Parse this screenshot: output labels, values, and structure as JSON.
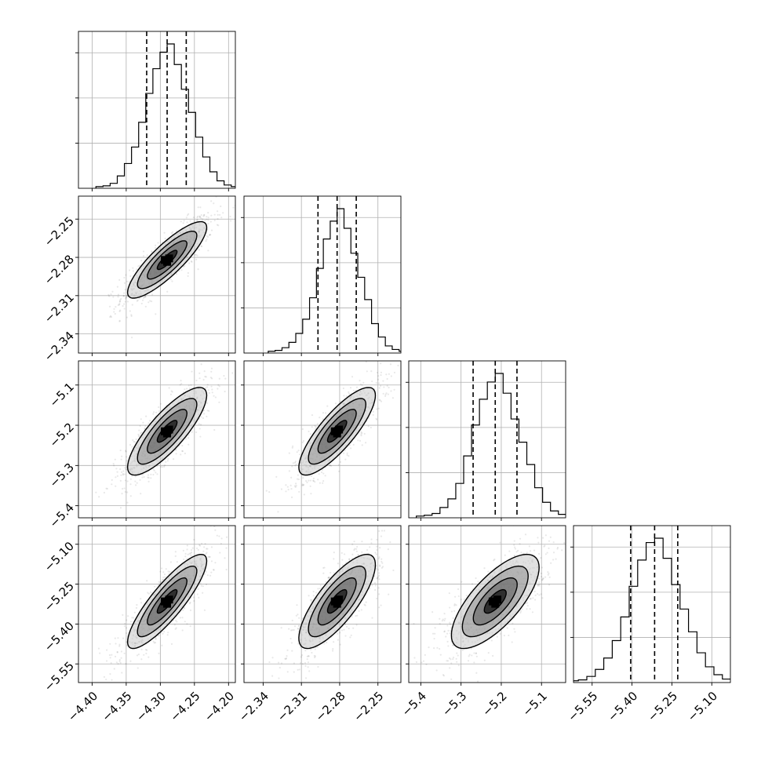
{
  "chart_data": {
    "type": "corner",
    "grid": true,
    "parameters": [
      {
        "index": 0,
        "range": [
          -4.42,
          -4.19
        ],
        "ticks": [
          "-4.40",
          "-4.35",
          "-4.30",
          "-4.25",
          "-4.20"
        ],
        "tick_values": [
          -4.4,
          -4.35,
          -4.3,
          -4.25,
          -4.2
        ],
        "median": -4.29,
        "quantiles": [
          -4.32,
          -4.29,
          -4.262
        ]
      },
      {
        "index": 1,
        "range": [
          -2.355,
          -2.232
        ],
        "ticks": [
          "-2.34",
          "-2.31",
          "-2.28",
          "-2.25"
        ],
        "tick_values": [
          -2.34,
          -2.31,
          -2.28,
          -2.25
        ],
        "median": -2.282,
        "quantiles": [
          -2.297,
          -2.282,
          -2.267
        ]
      },
      {
        "index": 2,
        "range": [
          -5.43,
          -5.04
        ],
        "ticks": [
          "-5.4",
          "-5.3",
          "-5.2",
          "-5.1"
        ],
        "tick_values": [
          -5.4,
          -5.3,
          -5.2,
          -5.1
        ],
        "median": -5.215,
        "quantiles": [
          -5.27,
          -5.215,
          -5.161
        ]
      },
      {
        "index": 3,
        "range": [
          -5.62,
          -5.03
        ],
        "ticks": [
          "-5.55",
          "-5.40",
          "-5.25",
          "-5.10"
        ],
        "tick_values": [
          -5.55,
          -5.4,
          -5.25,
          -5.1
        ],
        "median": -5.315,
        "quantiles": [
          -5.405,
          -5.315,
          -5.228
        ]
      }
    ],
    "row_tick_labels": {
      "1": [
        "-2.25",
        "-2.28",
        "-2.31",
        "-2.34"
      ],
      "2": [
        "-5.1",
        "-5.2",
        "-5.3",
        "-5.4"
      ],
      "3": [
        "-5.10",
        "-5.25",
        "-5.40",
        "-5.55"
      ]
    },
    "bottom_tick_labels": [
      [
        "-4.40",
        "-4.35",
        "-4.30",
        "-4.25",
        "-4.20"
      ],
      [
        "-2.34",
        "-2.31",
        "-2.28",
        "-2.25"
      ],
      [
        "-5.4",
        "-5.3",
        "-5.2",
        "-5.1"
      ],
      [
        "-5.55",
        "-5.40",
        "-5.25",
        "-5.10"
      ]
    ],
    "histograms": [
      {
        "index": 0,
        "bins": 20,
        "counts": [
          2,
          3,
          6,
          15,
          30,
          50,
          80,
          115,
          145,
          165,
          175,
          150,
          120,
          92,
          62,
          38,
          20,
          9,
          4,
          2
        ]
      },
      {
        "index": 1,
        "bins": 20,
        "counts": [
          2,
          3,
          6,
          12,
          22,
          38,
          62,
          95,
          128,
          148,
          162,
          140,
          112,
          85,
          60,
          33,
          18,
          8,
          4,
          2
        ]
      },
      {
        "index": 2,
        "bins": 20,
        "counts": [
          2,
          3,
          5,
          12,
          22,
          40,
          72,
          108,
          138,
          158,
          168,
          145,
          115,
          88,
          62,
          35,
          18,
          8,
          4,
          2
        ]
      },
      {
        "index": 3,
        "bins": 20,
        "counts": [
          2,
          3,
          7,
          15,
          28,
          48,
          75,
          110,
          140,
          160,
          165,
          142,
          112,
          84,
          58,
          34,
          18,
          9,
          4,
          2
        ]
      }
    ],
    "correlations": {
      "1-0": 0.85,
      "2-0": 0.82,
      "3-0": 0.86,
      "2-1": 0.82,
      "3-1": 0.78,
      "3-2": 0.72
    },
    "contour_levels_sigma": [
      0.5,
      1.0,
      1.5,
      2.0
    ]
  }
}
